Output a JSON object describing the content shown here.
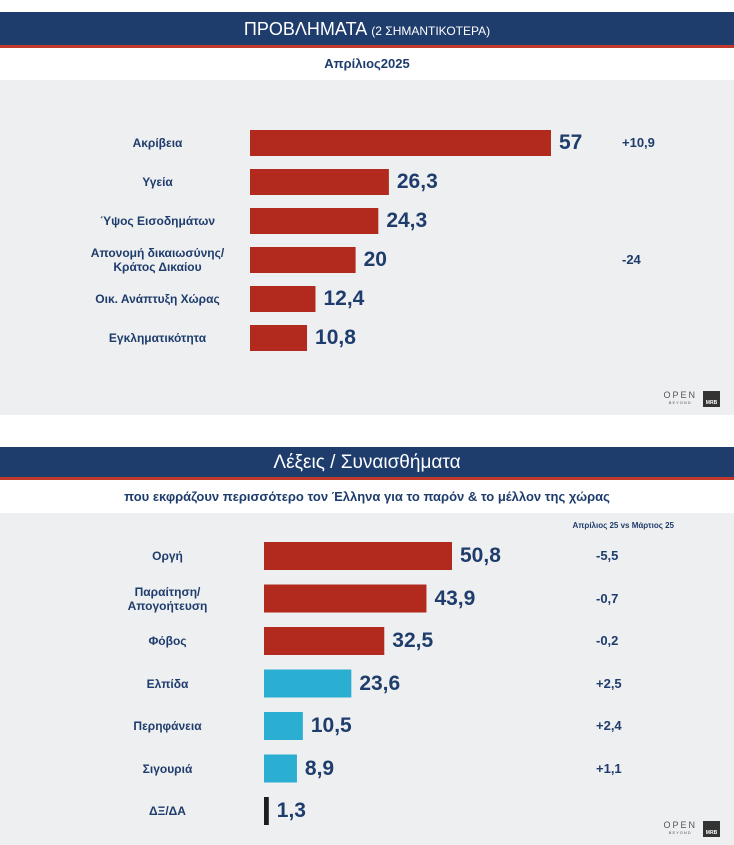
{
  "colors": {
    "header_bg": "#1e3c6c",
    "accent_line": "#c0392b",
    "bar_red": "#b22a1e",
    "bar_blue": "#2aaed2",
    "bar_dark": "#1d1d1d",
    "label": "#1e3c6c"
  },
  "panel1": {
    "title_main": "ΠΡΟΒΛΗΜΑΤΑ",
    "title_small": "(2 ΣΗΜΑΝΤΙΚΟΤΕΡΑ)",
    "subtitle": "Απρίλιος2025",
    "logo": {
      "open": "OPEN",
      "open_sub": "BEYOND",
      "mrb": "MRB"
    }
  },
  "panel2": {
    "title": "Λέξεις / Συναισθήματα",
    "subtitle": "που εκφράζουν περισσότερο τον Έλληνα για το παρόν & το μέλλον της χώρας",
    "change_header": "Απρίλιος 25 vs Μάρτιος 25",
    "logo": {
      "open": "OPEN",
      "open_sub": "BEYOND",
      "mrb": "MRB"
    }
  },
  "chart_data": [
    {
      "type": "bar",
      "orientation": "horizontal",
      "title": "ΠΡΟΒΛΗΜΑΤΑ (2 ΣΗΜΑΝΤΙΚΟΤΕΡΑ)",
      "subtitle": "Απρίλιος2025",
      "categories": [
        "Ακρίβεια",
        "Υγεία",
        "Ύψος Εισοδημάτων",
        "Απονομή δικαιωσύνης/\nΚράτος Δικαίου",
        "Οικ. Ανάπτυξη Χώρας",
        "Εγκληματικότητα"
      ],
      "values": [
        57,
        26.3,
        24.3,
        20,
        12.4,
        10.8
      ],
      "value_labels": [
        "57",
        "26,3",
        "24,3",
        "20",
        "12,4",
        "10,8"
      ],
      "changes": [
        "+10,9",
        "",
        "",
        "-24",
        "",
        ""
      ],
      "bar_colors": [
        "#b22a1e",
        "#b22a1e",
        "#b22a1e",
        "#b22a1e",
        "#b22a1e",
        "#b22a1e"
      ],
      "xlim": [
        0,
        57
      ]
    },
    {
      "type": "bar",
      "orientation": "horizontal",
      "title": "Λέξεις / Συναισθήματα",
      "subtitle": "που εκφράζουν περισσότερο τον Έλληνα για το παρόν & το μέλλον της χώρας",
      "categories": [
        "Οργή",
        "Παραίτηση/\nΑπογοήτευση",
        "Φόβος",
        "Ελπίδα",
        "Περηφάνεια",
        "Σιγουριά",
        "ΔΞ/ΔΑ"
      ],
      "values": [
        50.8,
        43.9,
        32.5,
        23.6,
        10.5,
        8.9,
        1.3
      ],
      "value_labels": [
        "50,8",
        "43,9",
        "32,5",
        "23,6",
        "10,5",
        "8,9",
        "1,3"
      ],
      "changes": [
        "-5,5",
        "-0,7",
        "-0,2",
        "+2,5",
        "+2,4",
        "+1,1",
        ""
      ],
      "change_header": "Απρίλιος 25 vs Μάρτιος 25",
      "bar_colors": [
        "#b22a1e",
        "#b22a1e",
        "#b22a1e",
        "#2aaed2",
        "#2aaed2",
        "#2aaed2",
        "#1d1d1d"
      ],
      "xlim": [
        0,
        50.8
      ]
    }
  ]
}
